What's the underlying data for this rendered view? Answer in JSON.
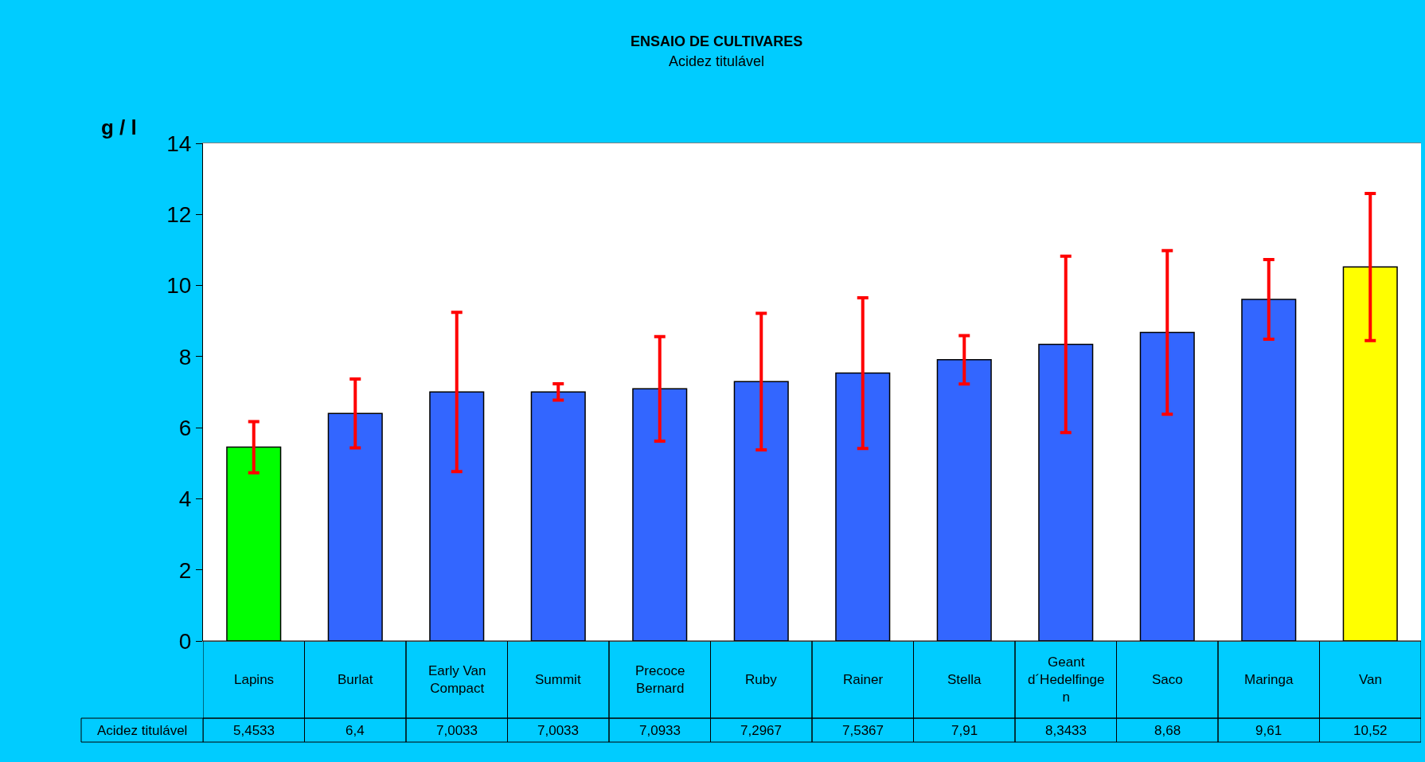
{
  "chart_data": {
    "type": "bar",
    "title": "ENSAIO DE CULTIVARES",
    "subtitle": "Acidez titulável",
    "ylabel": "g / l",
    "categories": [
      "Lapins",
      "Burlat",
      "Early Van Compact",
      "Summit",
      "Precoce Bernard",
      "Ruby",
      "Rainer",
      "Stella",
      "Geant d´Hedelfingen",
      "Saco",
      "Maringa",
      "Van"
    ],
    "series": [
      {
        "name": "Acidez titulável",
        "values": [
          5.4533,
          6.4,
          7.0033,
          7.0033,
          7.0933,
          7.2967,
          7.5367,
          7.91,
          8.3433,
          8.68,
          9.61,
          10.52
        ],
        "value_labels": [
          "5,4533",
          "6,4",
          "7,0033",
          "7,0033",
          "7,0933",
          "7,2967",
          "7,5367",
          "7,91",
          "8,3433",
          "8,68",
          "9,61",
          "10,52"
        ],
        "errors": [
          0.72,
          0.97,
          2.24,
          0.23,
          1.47,
          1.92,
          2.12,
          0.68,
          2.48,
          2.3,
          1.12,
          2.07
        ],
        "colors": [
          "#00ff00",
          "#3366ff",
          "#3366ff",
          "#3366ff",
          "#3366ff",
          "#3366ff",
          "#3366ff",
          "#3366ff",
          "#3366ff",
          "#3366ff",
          "#3366ff",
          "#ffff00"
        ]
      }
    ],
    "ylim": [
      0,
      14
    ],
    "yticks": [
      0,
      2,
      4,
      6,
      8,
      10,
      12,
      14
    ],
    "legend": false
  }
}
